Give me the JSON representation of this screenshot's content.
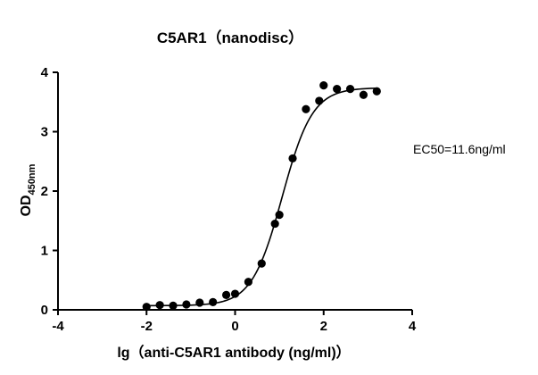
{
  "chart_data": {
    "type": "scatter",
    "title": "C5AR1（nanodisc）",
    "xlabel": "lg（anti-C5AR1 antibody (ng/ml)）",
    "ylabel_main": "OD",
    "ylabel_sub": "450nm",
    "xlim": [
      -4,
      4
    ],
    "ylim": [
      0,
      4
    ],
    "x_ticks": [
      -4,
      -2,
      0,
      2,
      4
    ],
    "y_ticks": [
      0,
      1,
      2,
      3,
      4
    ],
    "annotation": "EC50=11.6ng/ml",
    "series": [
      {
        "x": [
          -2.0,
          -1.7,
          -1.4,
          -1.1,
          -0.8,
          -0.5,
          -0.2,
          0.0,
          0.3,
          0.6,
          0.9,
          1.0,
          1.3,
          1.6,
          1.9,
          2.0,
          2.3,
          2.6,
          2.9,
          3.2
        ],
        "y": [
          0.05,
          0.08,
          0.07,
          0.09,
          0.12,
          0.13,
          0.25,
          0.27,
          0.47,
          0.78,
          1.45,
          1.6,
          2.55,
          3.38,
          3.52,
          3.78,
          3.72,
          3.72,
          3.62,
          3.68
        ]
      }
    ],
    "fit": {
      "bottom": 0.07,
      "top": 3.74,
      "log_ec50": 1.0645,
      "hill_slope": 1.27
    }
  }
}
